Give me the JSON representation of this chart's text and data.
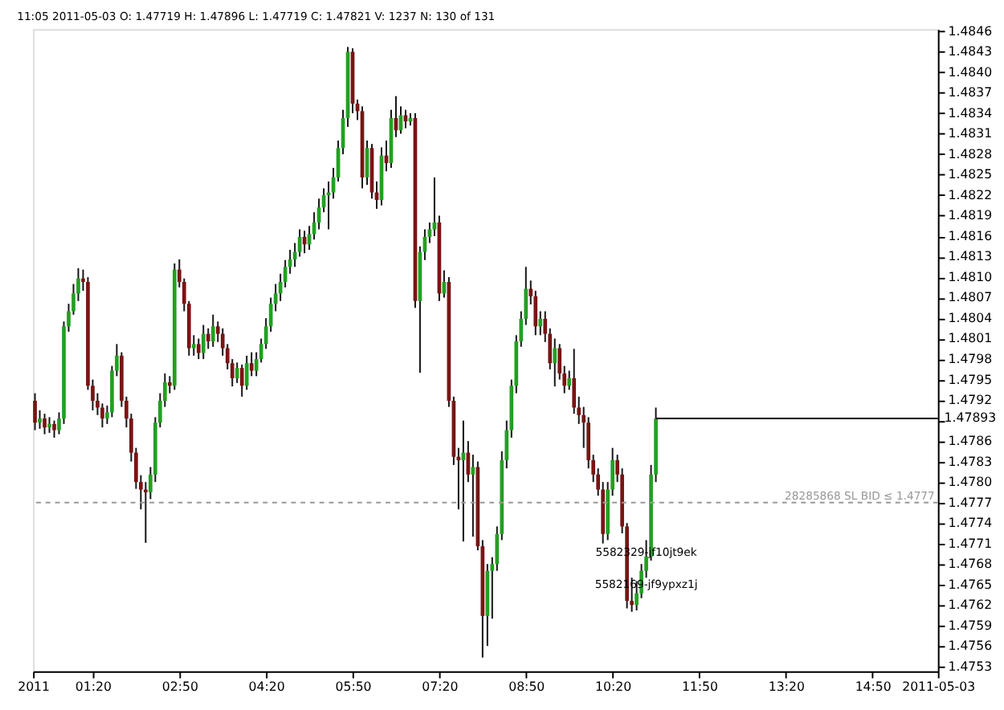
{
  "chart_data": {
    "type": "candlestick",
    "title": "11:05 2011-05-03  O: 1.47719  H: 1.47896  L: 1.47719  C: 1.47821  V: 1237  N: 130 of 131",
    "x": [
      "2011-05-03T00:20",
      "2011-05-03T00:25",
      "2011-05-03T00:30",
      "2011-05-03T00:35",
      "2011-05-03T00:40",
      "2011-05-03T00:45",
      "2011-05-03T00:50",
      "2011-05-03T00:55",
      "2011-05-03T01:00",
      "2011-05-03T01:05",
      "2011-05-03T01:10",
      "2011-05-03T01:15",
      "2011-05-03T01:20",
      "2011-05-03T01:25",
      "2011-05-03T01:30",
      "2011-05-03T01:35",
      "2011-05-03T01:40",
      "2011-05-03T01:45",
      "2011-05-03T01:50",
      "2011-05-03T01:55",
      "2011-05-03T02:00",
      "2011-05-03T02:05",
      "2011-05-03T02:10",
      "2011-05-03T02:15",
      "2011-05-03T02:20",
      "2011-05-03T02:25",
      "2011-05-03T02:30",
      "2011-05-03T02:35",
      "2011-05-03T02:40",
      "2011-05-03T02:45",
      "2011-05-03T02:50",
      "2011-05-03T02:55",
      "2011-05-03T03:00",
      "2011-05-03T03:05",
      "2011-05-03T03:10",
      "2011-05-03T03:15",
      "2011-05-03T03:20",
      "2011-05-03T03:25",
      "2011-05-03T03:30",
      "2011-05-03T03:35",
      "2011-05-03T03:40",
      "2011-05-03T03:45",
      "2011-05-03T03:50",
      "2011-05-03T03:55",
      "2011-05-03T04:00",
      "2011-05-03T04:05",
      "2011-05-03T04:10",
      "2011-05-03T04:15",
      "2011-05-03T04:20",
      "2011-05-03T04:25",
      "2011-05-03T04:30",
      "2011-05-03T04:35",
      "2011-05-03T04:40",
      "2011-05-03T04:45",
      "2011-05-03T04:50",
      "2011-05-03T04:55",
      "2011-05-03T05:00",
      "2011-05-03T05:05",
      "2011-05-03T05:10",
      "2011-05-03T05:15",
      "2011-05-03T05:20",
      "2011-05-03T05:25",
      "2011-05-03T05:30",
      "2011-05-03T05:35",
      "2011-05-03T05:40",
      "2011-05-03T05:45",
      "2011-05-03T05:50",
      "2011-05-03T05:55",
      "2011-05-03T06:00",
      "2011-05-03T06:05",
      "2011-05-03T06:10",
      "2011-05-03T06:15",
      "2011-05-03T06:20",
      "2011-05-03T06:25",
      "2011-05-03T06:30",
      "2011-05-03T06:35",
      "2011-05-03T06:40",
      "2011-05-03T06:45",
      "2011-05-03T06:50",
      "2011-05-03T06:55",
      "2011-05-03T07:00",
      "2011-05-03T07:05",
      "2011-05-03T07:10",
      "2011-05-03T07:15",
      "2011-05-03T07:20",
      "2011-05-03T07:25",
      "2011-05-03T07:30",
      "2011-05-03T07:35",
      "2011-05-03T07:40",
      "2011-05-03T07:45",
      "2011-05-03T07:50",
      "2011-05-03T07:55",
      "2011-05-03T08:00",
      "2011-05-03T08:05",
      "2011-05-03T08:10",
      "2011-05-03T08:15",
      "2011-05-03T08:20",
      "2011-05-03T08:25",
      "2011-05-03T08:30",
      "2011-05-03T08:35",
      "2011-05-03T08:40",
      "2011-05-03T08:45",
      "2011-05-03T08:50",
      "2011-05-03T08:55",
      "2011-05-03T09:00",
      "2011-05-03T09:05",
      "2011-05-03T09:10",
      "2011-05-03T09:15",
      "2011-05-03T09:20",
      "2011-05-03T09:25",
      "2011-05-03T09:30",
      "2011-05-03T09:35",
      "2011-05-03T09:40",
      "2011-05-03T09:45",
      "2011-05-03T09:50",
      "2011-05-03T09:55",
      "2011-05-03T10:00",
      "2011-05-03T10:05",
      "2011-05-03T10:10",
      "2011-05-03T10:15",
      "2011-05-03T10:20",
      "2011-05-03T10:25",
      "2011-05-03T10:30",
      "2011-05-03T10:35",
      "2011-05-03T10:40",
      "2011-05-03T10:45",
      "2011-05-03T10:50",
      "2011-05-03T10:55",
      "2011-05-03T11:00",
      "2011-05-03T11:05"
    ],
    "ohlc": [
      [
        1.47919,
        1.4793,
        1.47876,
        1.47887
      ],
      [
        1.47887,
        1.47905,
        1.47878,
        1.47893
      ],
      [
        1.47893,
        1.479,
        1.4787,
        1.4788
      ],
      [
        1.4788,
        1.47895,
        1.47872,
        1.47885
      ],
      [
        1.47885,
        1.4789,
        1.47865,
        1.47876
      ],
      [
        1.47876,
        1.47902,
        1.4787,
        1.47893
      ],
      [
        1.47893,
        1.48035,
        1.47885,
        1.48028
      ],
      [
        1.48028,
        1.48061,
        1.4802,
        1.4805
      ],
      [
        1.4805,
        1.4809,
        1.48045,
        1.48076
      ],
      [
        1.48076,
        1.48113,
        1.48065,
        1.48098
      ],
      [
        1.48098,
        1.48111,
        1.4808,
        1.48093
      ],
      [
        1.48093,
        1.481,
        1.47935,
        1.47941
      ],
      [
        1.47941,
        1.4795,
        1.47905,
        1.47919
      ],
      [
        1.47919,
        1.4793,
        1.47898,
        1.47909
      ],
      [
        1.47909,
        1.47915,
        1.4788,
        1.47893
      ],
      [
        1.47893,
        1.47912,
        1.47885,
        1.47902
      ],
      [
        1.47902,
        1.4797,
        1.47895,
        1.47963
      ],
      [
        1.47963,
        1.48002,
        1.47955,
        1.47985
      ],
      [
        1.47985,
        1.4799,
        1.4791,
        1.47919
      ],
      [
        1.47919,
        1.47925,
        1.4788,
        1.47893
      ],
      [
        1.47893,
        1.479,
        1.4783,
        1.47843
      ],
      [
        1.47843,
        1.4785,
        1.4779,
        1.478
      ],
      [
        1.478,
        1.4781,
        1.4776,
        1.47789
      ],
      [
        1.47789,
        1.478,
        1.47711,
        1.47785
      ],
      [
        1.47785,
        1.47822,
        1.47775,
        1.47811
      ],
      [
        1.47811,
        1.47895,
        1.478,
        1.47887
      ],
      [
        1.47887,
        1.4793,
        1.4788,
        1.47919
      ],
      [
        1.47919,
        1.47959,
        1.4791,
        1.47946
      ],
      [
        1.47946,
        1.47955,
        1.4793,
        1.47941
      ],
      [
        1.47941,
        1.4812,
        1.47935,
        1.48111
      ],
      [
        1.48111,
        1.48126,
        1.48085,
        1.48093
      ],
      [
        1.48093,
        1.48098,
        1.4805,
        1.48061
      ],
      [
        1.48061,
        1.48065,
        1.47985,
        1.47996
      ],
      [
        1.47996,
        1.48015,
        1.47985,
        1.48002
      ],
      [
        1.48002,
        1.4801,
        1.4798,
        1.47989
      ],
      [
        1.47989,
        1.4803,
        1.4798,
        1.48017
      ],
      [
        1.48017,
        1.48025,
        1.47995,
        1.48006
      ],
      [
        1.48006,
        1.48045,
        1.47998,
        1.48028
      ],
      [
        1.48028,
        1.48035,
        1.48005,
        1.48017
      ],
      [
        1.48017,
        1.48025,
        1.47985,
        1.47996
      ],
      [
        1.47996,
        1.48002,
        1.47965,
        1.47974
      ],
      [
        1.47974,
        1.4798,
        1.4794,
        1.47952
      ],
      [
        1.47952,
        1.47975,
        1.47945,
        1.47967
      ],
      [
        1.47967,
        1.47972,
        1.47925,
        1.47941
      ],
      [
        1.47941,
        1.47985,
        1.47935,
        1.47974
      ],
      [
        1.47974,
        1.4799,
        1.47955,
        1.47963
      ],
      [
        1.47963,
        1.4799,
        1.47955,
        1.4798
      ],
      [
        1.4798,
        1.4801,
        1.47975,
        1.48002
      ],
      [
        1.48002,
        1.4804,
        1.47995,
        1.48028
      ],
      [
        1.48028,
        1.4807,
        1.4802,
        1.48061
      ],
      [
        1.48061,
        1.4809,
        1.4805,
        1.48076
      ],
      [
        1.48076,
        1.48105,
        1.48065,
        1.48093
      ],
      [
        1.48093,
        1.48125,
        1.48085,
        1.48115
      ],
      [
        1.48115,
        1.4814,
        1.48105,
        1.48126
      ],
      [
        1.48126,
        1.4815,
        1.48115,
        1.48137
      ],
      [
        1.48137,
        1.4817,
        1.4813,
        1.48159
      ],
      [
        1.48159,
        1.48168,
        1.48135,
        1.48148
      ],
      [
        1.48148,
        1.48175,
        1.4814,
        1.48163
      ],
      [
        1.48163,
        1.48195,
        1.48155,
        1.4818
      ],
      [
        1.4818,
        1.48215,
        1.4817,
        1.48202
      ],
      [
        1.48202,
        1.4823,
        1.48195,
        1.4822
      ],
      [
        1.4822,
        1.4824,
        1.4817,
        1.48224
      ],
      [
        1.48224,
        1.4826,
        1.48215,
        1.48246
      ],
      [
        1.48246,
        1.483,
        1.4824,
        1.48289
      ],
      [
        1.48289,
        1.48345,
        1.4828,
        1.48333
      ],
      [
        1.48333,
        1.48437,
        1.4832,
        1.4843
      ],
      [
        1.4843,
        1.48435,
        1.4834,
        1.48354
      ],
      [
        1.48354,
        1.4836,
        1.4833,
        1.48343
      ],
      [
        1.48343,
        1.4835,
        1.4823,
        1.48246
      ],
      [
        1.48246,
        1.483,
        1.48235,
        1.48289
      ],
      [
        1.48289,
        1.48295,
        1.48215,
        1.48224
      ],
      [
        1.48224,
        1.4824,
        1.482,
        1.48213
      ],
      [
        1.48213,
        1.4829,
        1.48205,
        1.48278
      ],
      [
        1.48278,
        1.483,
        1.48255,
        1.48267
      ],
      [
        1.48267,
        1.48345,
        1.4826,
        1.48333
      ],
      [
        1.48333,
        1.48365,
        1.48305,
        1.48315
      ],
      [
        1.48315,
        1.4835,
        1.4831,
        1.48337
      ],
      [
        1.48337,
        1.48345,
        1.48318,
        1.48328
      ],
      [
        1.48328,
        1.4834,
        1.48322,
        1.48333
      ],
      [
        1.48333,
        1.4834,
        1.48055,
        1.48065
      ],
      [
        1.48065,
        1.48145,
        1.4796,
        1.48137
      ],
      [
        1.48137,
        1.4817,
        1.48125,
        1.48159
      ],
      [
        1.48159,
        1.4818,
        1.4815,
        1.4817
      ],
      [
        1.4817,
        1.48246,
        1.4816,
        1.4818
      ],
      [
        1.4818,
        1.4819,
        1.48065,
        1.48076
      ],
      [
        1.48076,
        1.4811,
        1.4807,
        1.48093
      ],
      [
        1.48093,
        1.481,
        1.4791,
        1.47919
      ],
      [
        1.47919,
        1.47925,
        1.47825,
        1.47837
      ],
      [
        1.47837,
        1.4785,
        1.4776,
        1.47832
      ],
      [
        1.47832,
        1.4789,
        1.47713,
        1.47843
      ],
      [
        1.47843,
        1.4786,
        1.478,
        1.47811
      ],
      [
        1.47811,
        1.4784,
        1.4772,
        1.47822
      ],
      [
        1.47822,
        1.4783,
        1.477,
        1.47706
      ],
      [
        1.47706,
        1.47715,
        1.47543,
        1.47604
      ],
      [
        1.47604,
        1.4768,
        1.4756,
        1.4767
      ],
      [
        1.4767,
        1.4769,
        1.476,
        1.4768
      ],
      [
        1.4768,
        1.47735,
        1.4767,
        1.47724
      ],
      [
        1.47724,
        1.47845,
        1.47715,
        1.47832
      ],
      [
        1.47832,
        1.4789,
        1.4782,
        1.47876
      ],
      [
        1.47876,
        1.4795,
        1.47865,
        1.47941
      ],
      [
        1.47941,
        1.48015,
        1.4793,
        1.48006
      ],
      [
        1.48006,
        1.4805,
        1.47998,
        1.48039
      ],
      [
        1.48039,
        1.48115,
        1.4803,
        1.48083
      ],
      [
        1.48083,
        1.48095,
        1.4806,
        1.48072
      ],
      [
        1.48072,
        1.4808,
        1.48015,
        1.48028
      ],
      [
        1.48028,
        1.4805,
        1.48015,
        1.48039
      ],
      [
        1.48039,
        1.4805,
        1.48005,
        1.48017
      ],
      [
        1.48017,
        1.48025,
        1.47965,
        1.47974
      ],
      [
        1.47974,
        1.4801,
        1.4794,
        1.47996
      ],
      [
        1.47996,
        1.48002,
        1.4795,
        1.47959
      ],
      [
        1.47959,
        1.4797,
        1.4793,
        1.47941
      ],
      [
        1.47941,
        1.47963,
        1.47935,
        1.47952
      ],
      [
        1.47952,
        1.47995,
        1.479,
        1.47909
      ],
      [
        1.47909,
        1.47925,
        1.47885,
        1.47898
      ],
      [
        1.47898,
        1.4791,
        1.4785,
        1.47887
      ],
      [
        1.47887,
        1.47895,
        1.4782,
        1.47832
      ],
      [
        1.47832,
        1.4784,
        1.478,
        1.47811
      ],
      [
        1.47811,
        1.4782,
        1.4778,
        1.47789
      ],
      [
        1.47789,
        1.478,
        1.4771,
        1.47724
      ],
      [
        1.47724,
        1.478,
        1.47715,
        1.47789
      ],
      [
        1.47789,
        1.4785,
        1.4778,
        1.47832
      ],
      [
        1.47832,
        1.4784,
        1.478,
        1.47811
      ],
      [
        1.47811,
        1.4782,
        1.47725,
        1.47735
      ],
      [
        1.47735,
        1.4774,
        1.47615,
        1.47626
      ],
      [
        1.47626,
        1.4766,
        1.4761,
        1.4762
      ],
      [
        1.4762,
        1.47655,
        1.47612,
        1.47637
      ],
      [
        1.47637,
        1.4768,
        1.4763,
        1.4767
      ],
      [
        1.4767,
        1.47715,
        1.4766,
        1.47691
      ],
      [
        1.47691,
        1.47825,
        1.47685,
        1.47811
      ],
      [
        1.47811,
        1.47909,
        1.478,
        1.47893
      ]
    ],
    "colors": [
      "#7a1414",
      "#22a022",
      "#7a1414",
      "#22a022",
      "#7a1414",
      "#22a022",
      "#22a022",
      "#22a022",
      "#22a022",
      "#22a022",
      "#7a1414",
      "#7a1414",
      "#7a1414",
      "#7a1414",
      "#7a1414",
      "#22a022",
      "#22a022",
      "#22a022",
      "#7a1414",
      "#7a1414",
      "#7a1414",
      "#7a1414",
      "#7a1414",
      "#7a1414",
      "#22a022",
      "#22a022",
      "#22a022",
      "#22a022",
      "#7a1414",
      "#22a022",
      "#7a1414",
      "#7a1414",
      "#7a1414",
      "#22a022",
      "#7a1414",
      "#22a022",
      "#7a1414",
      "#22a022",
      "#7a1414",
      "#7a1414",
      "#7a1414",
      "#7a1414",
      "#22a022",
      "#7a1414",
      "#22a022",
      "#7a1414",
      "#22a022",
      "#22a022",
      "#22a022",
      "#22a022",
      "#22a022",
      "#22a022",
      "#22a022",
      "#22a022",
      "#22a022",
      "#22a022",
      "#7a1414",
      "#22a022",
      "#22a022",
      "#22a022",
      "#22a022",
      "#22a022",
      "#22a022",
      "#22a022",
      "#22a022",
      "#22a022",
      "#7a1414",
      "#7a1414",
      "#7a1414",
      "#22a022",
      "#7a1414",
      "#7a1414",
      "#22a022",
      "#7a1414",
      "#22a022",
      "#7a1414",
      "#22a022",
      "#7a1414",
      "#22a022",
      "#7a1414",
      "#22a022",
      "#22a022",
      "#22a022",
      "#22a022",
      "#7a1414",
      "#22a022",
      "#7a1414",
      "#7a1414",
      "#7a1414",
      "#22a022",
      "#7a1414",
      "#22a022",
      "#7a1414",
      "#7a1414",
      "#22a022",
      "#22a022",
      "#22a022",
      "#22a022",
      "#22a022",
      "#22a022",
      "#22a022",
      "#22a022",
      "#22a022",
      "#7a1414",
      "#7a1414",
      "#22a022",
      "#7a1414",
      "#7a1414",
      "#22a022",
      "#7a1414",
      "#7a1414",
      "#22a022",
      "#7a1414",
      "#7a1414",
      "#7a1414",
      "#7a1414",
      "#7a1414",
      "#7a1414",
      "#7a1414",
      "#22a022",
      "#22a022",
      "#7a1414",
      "#7a1414",
      "#7a1414",
      "#7a1414",
      "#22a022",
      "#22a022",
      "#22a022",
      "#22a022",
      "#22a022"
    ],
    "xlim": [
      "2011-05-03T00:18",
      "2011-05-03T15:58"
    ],
    "xticks": [
      {
        "value": "2011-05-03T00:18",
        "label": "2011"
      },
      {
        "value": "2011-05-03T01:20",
        "label": "01:20"
      },
      {
        "value": "2011-05-03T02:50",
        "label": "02:50"
      },
      {
        "value": "2011-05-03T04:20",
        "label": "04:20"
      },
      {
        "value": "2011-05-03T05:50",
        "label": "05:50"
      },
      {
        "value": "2011-05-03T07:20",
        "label": "07:20"
      },
      {
        "value": "2011-05-03T08:50",
        "label": "08:50"
      },
      {
        "value": "2011-05-03T10:20",
        "label": "10:20"
      },
      {
        "value": "2011-05-03T11:50",
        "label": "11:50"
      },
      {
        "value": "2011-05-03T13:20",
        "label": "13:20"
      },
      {
        "value": "2011-05-03T14:50",
        "label": "14:50"
      },
      {
        "value": "2011-05-03T15:58",
        "label": "2011-05-03"
      }
    ],
    "ylim": [
      1.47523,
      1.48463
    ],
    "yticks": [
      1.4753,
      1.4756,
      1.4759,
      1.4762,
      1.4765,
      1.4768,
      1.4771,
      1.4774,
      1.4777,
      {
        "value": 1.478,
        "label": "1.4780"
      },
      1.4783,
      1.4786,
      {
        "value": 1.4789,
        "label": null
      },
      1.4792,
      1.4795,
      1.4798,
      1.4801,
      1.4804,
      1.4807,
      {
        "value": 1.481,
        "label": "1.4810"
      },
      1.4813,
      1.4816,
      1.4819,
      1.4822,
      1.4825,
      1.4828,
      1.4831,
      1.4834,
      1.4837,
      {
        "value": 1.484,
        "label": "1.4840"
      },
      1.4843,
      1.4846
    ],
    "ref_lines": [
      {
        "axis": "y",
        "value": 1.4777,
        "label": "28285868 SL BID ≤ 1.4777",
        "color": "#999999",
        "line_style": "dashed"
      },
      {
        "axis": "y",
        "value": 1.47893,
        "label": "1.47893",
        "color": "#000000",
        "line_style": "solid"
      }
    ],
    "annotations": [
      {
        "text": "5582329-jf10jt9ek",
        "x": "2011-05-03T10:55",
        "y": 1.47697
      },
      {
        "text": "5582169-jf9ypxz1j",
        "x": "2011-05-03T10:55",
        "y": 1.47649
      }
    ],
    "grid": false
  }
}
